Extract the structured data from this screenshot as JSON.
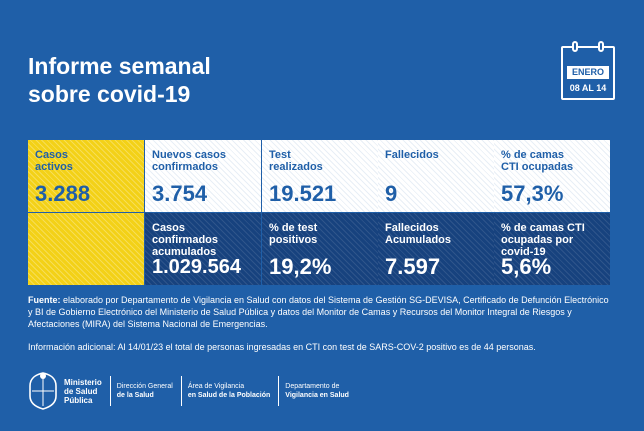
{
  "title": {
    "line1": "Informe semanal",
    "line2": "sobre covid-19"
  },
  "calendar": {
    "month": "ENERO",
    "days": "08 AL 14"
  },
  "cards": [
    {
      "label": "Casos activos",
      "value": "3.288"
    },
    {
      "label": "Nuevos casos confirmados",
      "value": "3.754"
    },
    {
      "label": "Test realizados",
      "value": "19.521"
    },
    {
      "label": "Fallecidos",
      "value": "9"
    },
    {
      "label": "% de camas CTI ocupadas",
      "value": "57,3%"
    },
    {
      "label": "Casos confirmados acumulados",
      "value": "1.029.564"
    },
    {
      "label": "% de test positivos",
      "value": "19,2%"
    },
    {
      "label": "Fallecidos Acumulados",
      "value": "7.597"
    },
    {
      "label": "% de camas CTI ocupadas por covid-19",
      "value": "5,6%"
    }
  ],
  "source": {
    "label": "Fuente:",
    "text": "elaborado por Departamento de Vigilancia en Salud con datos del Sistema de Gestión SG-DEVISA, Certificado de Defunción Electrónico y BI de Gobierno Electrónico del Ministerio de Salud Pública y datos del Monitor de Camas y Recursos del Monitor  Integral de Riesgos y Afectaciones (MIRA) del Sistema Nacional de Emergencias."
  },
  "additional_info": "Información adicional: Al 14/01/23 el total de personas ingresadas en CTI con test de SARS-COV-2 positivo es de 44 personas.",
  "footer": {
    "ministry": [
      "Ministerio",
      "de Salud",
      "Pública"
    ],
    "units": [
      {
        "line1": "Dirección General",
        "line2": "de la Salud"
      },
      {
        "line1": "Área de Vigilancia",
        "line2": "en Salud de la Población"
      },
      {
        "line1": "Departamento de",
        "line2": "Vigilancia en Salud"
      }
    ]
  },
  "colors": {
    "background": "#1f5fa8",
    "highlight": "#f3d117",
    "navy": "#17427e",
    "card": "#ffffff"
  },
  "icons": {
    "calendar": "calendar-icon",
    "logo": "shield-logo-icon"
  }
}
